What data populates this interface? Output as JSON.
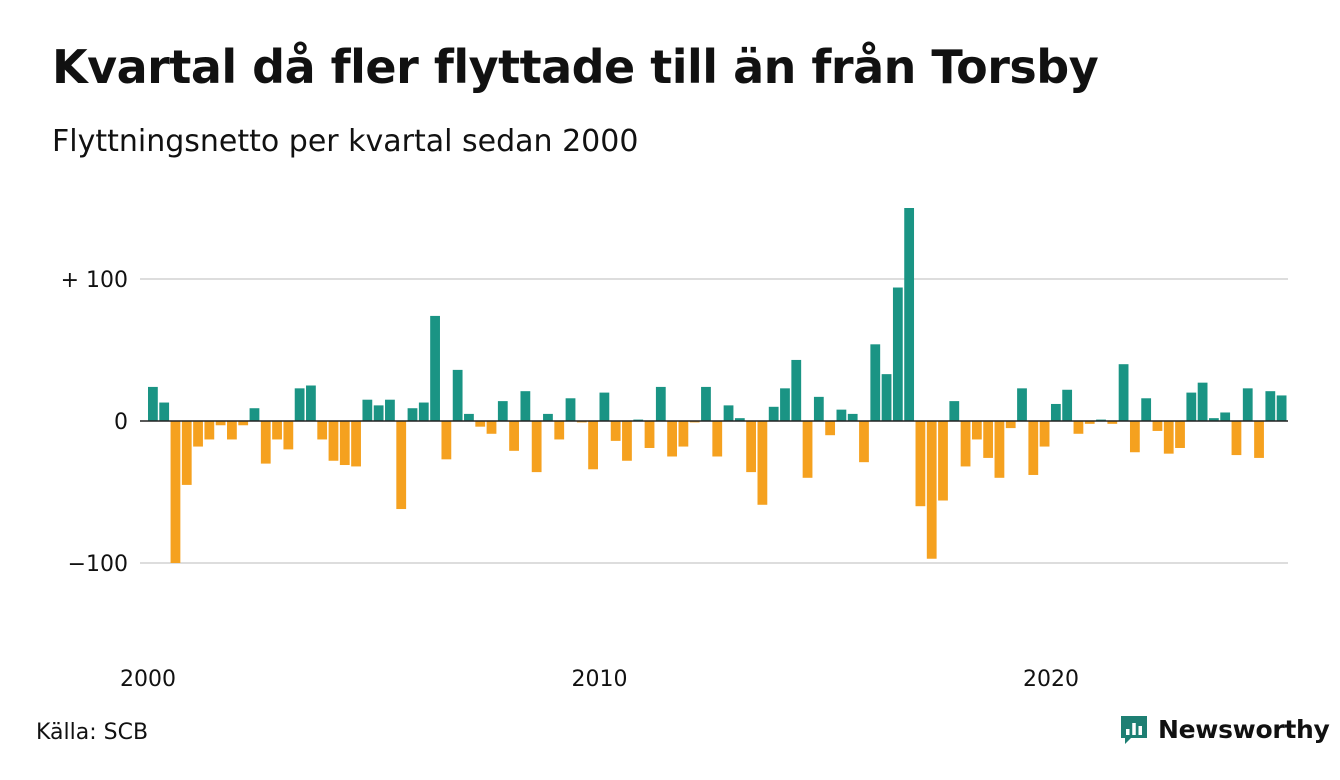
{
  "header": {
    "title": "Kvartal då fler flyttade till än från Torsby",
    "subtitle": "Flyttningsnetto per kvartal sedan 2000"
  },
  "footer": {
    "source": "Källa: SCB",
    "brand": "Newsworthy"
  },
  "colors": {
    "positive": "#1a9484",
    "negative": "#f5a11f",
    "grid": "#dddddd",
    "baseline": "#222222",
    "brand": "#1e7f73"
  },
  "icons": {
    "brand_logo": "newsworthy-logo-icon"
  },
  "chart_data": {
    "type": "bar",
    "title": "Kvartal då fler flyttade till än från Torsby",
    "subtitle": "Flyttningsnetto per kvartal sedan 2000",
    "xlabel": "",
    "ylabel": "",
    "ylim": [
      -150,
      150
    ],
    "yticks": [
      {
        "value": 100,
        "label": "+ 100"
      },
      {
        "value": 0,
        "label": "0"
      },
      {
        "value": -100,
        "label": "−100"
      }
    ],
    "xticks": [
      {
        "label": "2000",
        "year": 2000
      },
      {
        "label": "2010",
        "year": 2010
      },
      {
        "label": "2020",
        "year": 2020
      }
    ],
    "grid": true,
    "legend": "none",
    "start": "2000 Q1",
    "values": [
      24,
      13,
      -100,
      -45,
      -18,
      -13,
      -3,
      -13,
      -3,
      9,
      -30,
      -13,
      -20,
      23,
      25,
      -13,
      -28,
      -31,
      -32,
      15,
      11,
      15,
      -62,
      9,
      13,
      74,
      -27,
      36,
      5,
      -4,
      -9,
      14,
      -21,
      21,
      -36,
      5,
      -13,
      16,
      -1,
      -34,
      20,
      -14,
      -28,
      1,
      -19,
      24,
      -25,
      -18,
      -1,
      24,
      -25,
      11,
      2,
      -36,
      -59,
      10,
      23,
      43,
      -40,
      17,
      -10,
      8,
      5,
      -29,
      54,
      33,
      94,
      150,
      -60,
      -97,
      -56,
      14,
      -32,
      -13,
      -26,
      -40,
      -5,
      23,
      -38,
      -18,
      12,
      22,
      -9,
      -2,
      1,
      -2,
      40,
      -22,
      16,
      -7,
      -23,
      -19,
      20,
      27,
      2,
      6,
      -24,
      23,
      -26,
      21,
      18
    ]
  }
}
